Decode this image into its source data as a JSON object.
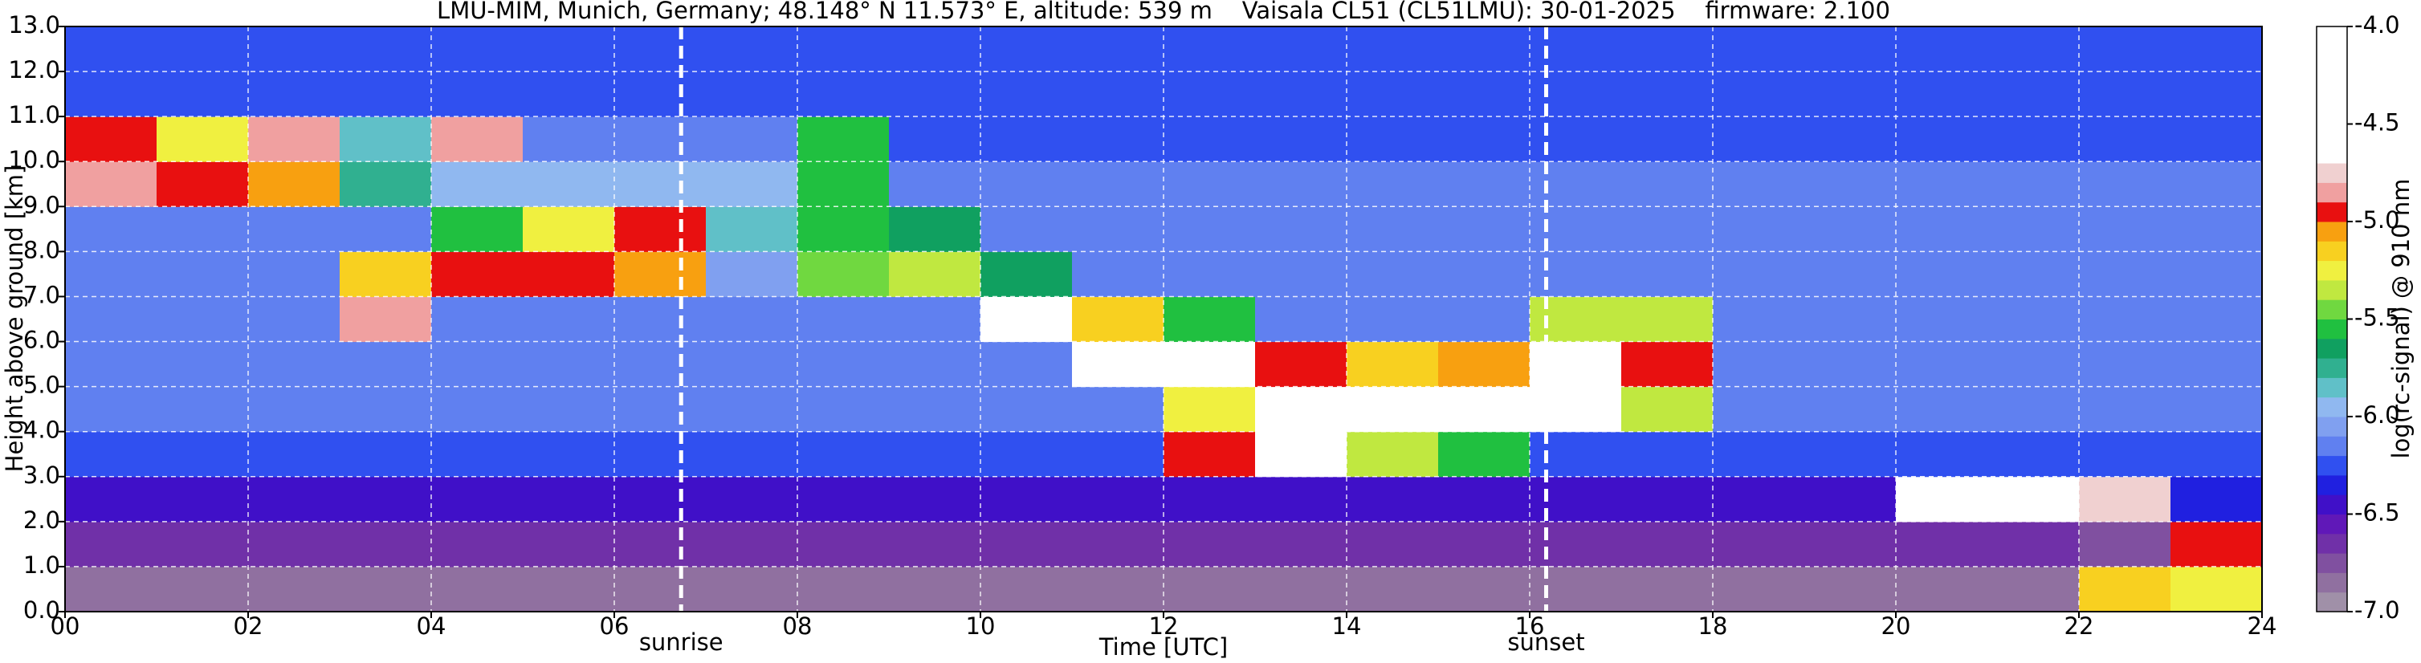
{
  "chart_data": {
    "type": "heatmap",
    "title": "LMU-MIM, Munich, Germany; 48.148° N 11.573° E, altitude: 539 m    Vaisala CL51 (CL51LMU): 30-01-2025    firmware: 2.100",
    "xlabel": "Time [UTC]",
    "ylabel": "Height above ground [km]",
    "colorbar_label": "log(rc-signal) @ 910 nm",
    "xlim": [
      0,
      24
    ],
    "ylim": [
      0,
      13
    ],
    "xticks": [
      {
        "value": 0,
        "label": "00"
      },
      {
        "value": 2,
        "label": "02"
      },
      {
        "value": 4,
        "label": "04"
      },
      {
        "value": 6,
        "label": "06"
      },
      {
        "value": 8,
        "label": "08"
      },
      {
        "value": 10,
        "label": "10"
      },
      {
        "value": 12,
        "label": "12"
      },
      {
        "value": 14,
        "label": "14"
      },
      {
        "value": 16,
        "label": "16"
      },
      {
        "value": 18,
        "label": "18"
      },
      {
        "value": 20,
        "label": "20"
      },
      {
        "value": 22,
        "label": "22"
      },
      {
        "value": 24,
        "label": "24"
      }
    ],
    "yticks": [
      {
        "value": 0,
        "label": "0.0"
      },
      {
        "value": 1,
        "label": "1.0"
      },
      {
        "value": 2,
        "label": "2.0"
      },
      {
        "value": 3,
        "label": "3.0"
      },
      {
        "value": 4,
        "label": "4.0"
      },
      {
        "value": 5,
        "label": "5.0"
      },
      {
        "value": 6,
        "label": "6.0"
      },
      {
        "value": 7,
        "label": "7.0"
      },
      {
        "value": 8,
        "label": "8.0"
      },
      {
        "value": 9,
        "label": "9.0"
      },
      {
        "value": 10,
        "label": "10.0"
      },
      {
        "value": 11,
        "label": "11.0"
      },
      {
        "value": 12,
        "label": "12.0"
      },
      {
        "value": 13,
        "label": "13.0"
      }
    ],
    "grid": true,
    "clim": [
      -7,
      -4
    ],
    "cticks": [
      {
        "value": -7,
        "label": "-7.0"
      },
      -6.5,
      {
        "value": -6,
        "label": "-6.0"
      },
      -5.5,
      {
        "value": -5,
        "label": "-5.0"
      },
      -4.5,
      {
        "value": -4,
        "label": "-4.0"
      }
    ],
    "color_bounds": [
      -7.0,
      -6.9,
      -6.8,
      -6.7,
      -6.6,
      -6.5,
      -6.4,
      -6.3,
      -6.2,
      -6.1,
      -6.0,
      -5.9,
      -5.8,
      -5.7,
      -5.6,
      -5.5,
      -5.4,
      -5.3,
      -5.2,
      -5.1,
      -5.0,
      -4.9,
      -4.8,
      -4.7
    ],
    "colors": [
      "#a090a8",
      "#9070a0",
      "#8050a0",
      "#7030a8",
      "#6018b8",
      "#4010c8",
      "#2020e0",
      "#3050f0",
      "#6080f0",
      "#80a0f0",
      "#90b8f0",
      "#60c0c8",
      "#30b090",
      "#10a060",
      "#20c040",
      "#70d840",
      "#c0e840",
      "#f0f040",
      "#f8d020",
      "#f8a010",
      "#e81010",
      "#f0a0a0",
      "#f0d0d0",
      "#ffffff"
    ],
    "xbins": [
      0,
      1,
      2,
      3,
      4,
      5,
      6,
      7,
      8,
      9,
      10,
      11,
      12,
      13,
      14,
      15,
      16,
      17,
      18,
      19,
      20,
      21,
      22,
      23,
      24
    ],
    "ybins": [
      0,
      1,
      2,
      3,
      4,
      5,
      6,
      7,
      8,
      9,
      10,
      11,
      12,
      13
    ],
    "z": [
      [
        -6.9,
        -6.9,
        -6.9,
        -6.9,
        -6.9,
        -6.9,
        -6.9,
        -6.9,
        -6.9,
        -6.9,
        -6.9,
        -6.9,
        -6.9,
        -6.9,
        -6.9,
        -6.9,
        -6.9,
        -6.9,
        -6.9,
        -6.9,
        -6.9,
        -6.9,
        -5.2,
        -5.3
      ],
      [
        -6.7,
        -6.7,
        -6.7,
        -6.7,
        -6.7,
        -6.7,
        -6.7,
        -6.7,
        -6.7,
        -6.7,
        -6.7,
        -6.7,
        -6.7,
        -6.7,
        -6.7,
        -6.7,
        -6.7,
        -6.7,
        -6.7,
        -6.7,
        -6.7,
        -6.7,
        -6.8,
        -5.0
      ],
      [
        -6.5,
        -6.5,
        -6.5,
        -6.5,
        -6.5,
        -6.5,
        -6.5,
        -6.5,
        -6.5,
        -6.5,
        -6.5,
        -6.5,
        -6.5,
        -6.5,
        -6.5,
        -6.5,
        -6.5,
        -6.5,
        -6.5,
        -6.5,
        -4.6,
        -4.5,
        -4.8,
        -6.4
      ],
      [
        -6.3,
        -6.3,
        -6.3,
        -6.3,
        -6.3,
        -6.3,
        -6.3,
        -6.3,
        -6.3,
        -6.3,
        -6.3,
        -6.3,
        -5.0,
        -4.6,
        -5.4,
        -5.6,
        -6.3,
        -6.3,
        -6.3,
        -6.3,
        -6.3,
        -6.3,
        -6.3,
        -6.3
      ],
      [
        -6.2,
        -6.2,
        -6.2,
        -6.2,
        -6.2,
        -6.2,
        -6.2,
        -6.2,
        -6.2,
        -6.2,
        -6.2,
        -6.2,
        -5.3,
        -4.7,
        -4.5,
        -4.4,
        -4.6,
        -5.4,
        -6.2,
        -6.2,
        -6.2,
        -6.2,
        -6.2,
        -6.2
      ],
      [
        -6.2,
        -6.2,
        -6.2,
        -6.2,
        -6.2,
        -6.2,
        -6.2,
        -6.2,
        -6.2,
        -6.2,
        -6.2,
        -4.5,
        -4.4,
        -5.0,
        -5.2,
        -5.1,
        -4.6,
        -5.0,
        -6.2,
        -6.2,
        -6.2,
        -6.2,
        -6.2,
        -6.2
      ],
      [
        -6.2,
        -6.2,
        -6.2,
        -4.9,
        -6.2,
        -6.2,
        -6.2,
        -6.2,
        -6.2,
        -6.2,
        -4.6,
        -5.2,
        -5.6,
        -6.2,
        -6.2,
        -6.2,
        -5.4,
        -5.4,
        -6.2,
        -6.2,
        -6.2,
        -6.2,
        -6.2,
        -6.2
      ],
      [
        -6.2,
        -6.2,
        -6.2,
        -5.2,
        -5.0,
        -5.0,
        -5.1,
        -6.1,
        -5.5,
        -5.4,
        -5.7,
        -6.2,
        -6.2,
        -6.2,
        -6.2,
        -6.2,
        -6.2,
        -6.2,
        -6.2,
        -6.2,
        -6.2,
        -6.2,
        -6.2,
        -6.2
      ],
      [
        -6.2,
        -6.2,
        -6.2,
        -6.2,
        -5.6,
        -5.3,
        -5.0,
        -5.9,
        -5.6,
        -5.7,
        -6.2,
        -6.2,
        -6.2,
        -6.2,
        -6.2,
        -6.2,
        -6.2,
        -6.2,
        -6.2,
        -6.2,
        -6.2,
        -6.2,
        -6.2,
        -6.2
      ],
      [
        -4.9,
        -5.0,
        -5.1,
        -5.8,
        -6.0,
        -6.0,
        -6.0,
        -6.0,
        -5.6,
        -6.2,
        -6.2,
        -6.2,
        -6.2,
        -6.2,
        -6.2,
        -6.2,
        -6.2,
        -6.2,
        -6.2,
        -6.2,
        -6.2,
        -6.2,
        -6.2,
        -6.2
      ],
      [
        -5.0,
        -5.3,
        -4.9,
        -5.9,
        -4.9,
        -6.2,
        -6.2,
        -6.2,
        -5.6,
        -6.3,
        -6.3,
        -6.3,
        -6.3,
        -6.3,
        -6.3,
        -6.3,
        -6.3,
        -6.3,
        -6.3,
        -6.3,
        -6.3,
        -6.3,
        -6.3,
        -6.3
      ],
      [
        -6.3,
        -6.3,
        -6.3,
        -6.3,
        -6.3,
        -6.3,
        -6.3,
        -6.3,
        -6.3,
        -6.3,
        -6.3,
        -6.3,
        -6.3,
        -6.3,
        -6.3,
        -6.3,
        -6.3,
        -6.3,
        -6.3,
        -6.3,
        -6.3,
        -6.3,
        -6.3,
        -6.3
      ],
      [
        -6.3,
        -6.3,
        -6.3,
        -6.3,
        -6.3,
        -6.3,
        -6.3,
        -6.3,
        -6.3,
        -6.3,
        -6.3,
        -6.3,
        -6.3,
        -6.3,
        -6.3,
        -6.3,
        -6.3,
        -6.3,
        -6.3,
        -6.3,
        -6.3,
        -6.3,
        -6.3,
        -6.3
      ]
    ],
    "annotations": [
      {
        "x": 6.73,
        "label": "sunrise"
      },
      {
        "x": 16.18,
        "label": "sunset"
      }
    ]
  }
}
